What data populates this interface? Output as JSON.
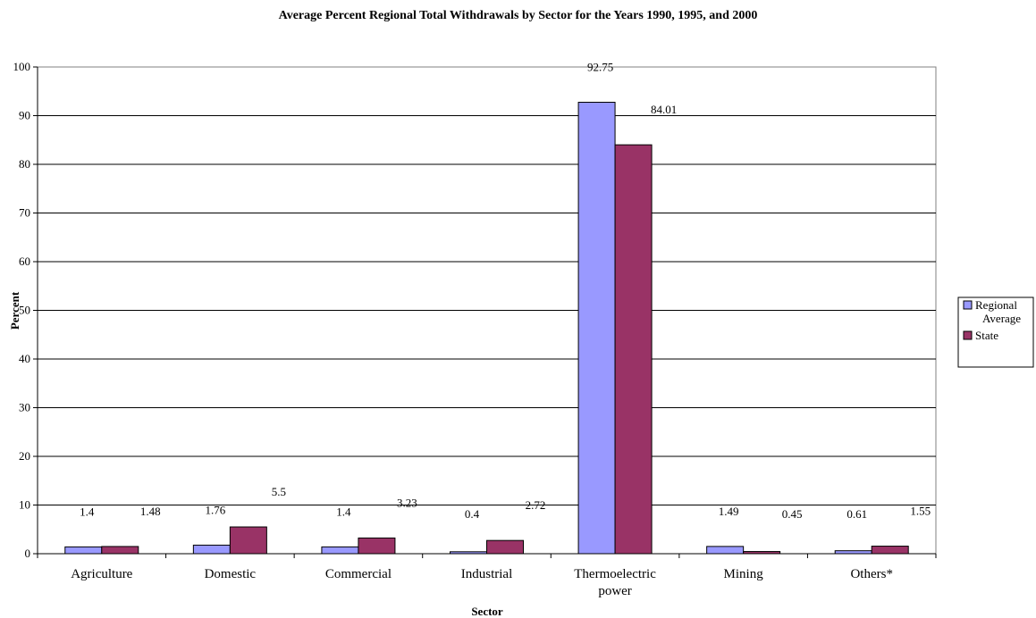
{
  "chart_data": {
    "type": "bar",
    "title": "Average Percent Regional Total Withdrawals by Sector for the Years 1990, 1995, and 2000",
    "xlabel": "Sector",
    "ylabel": "Percent",
    "ylim": [
      0,
      100
    ],
    "yticks": [
      "0",
      "10",
      "20",
      "30",
      "40",
      "50",
      "60",
      "70",
      "80",
      "90",
      "100"
    ],
    "categories": [
      [
        "Agriculture"
      ],
      [
        "Domestic"
      ],
      [
        "Commercial"
      ],
      [
        "Industrial"
      ],
      [
        "Thermoelectric",
        "power"
      ],
      [
        "Mining"
      ],
      [
        "Others*"
      ]
    ],
    "series": [
      {
        "name": "Regional Average",
        "legend_lines": [
          "Regional",
          "Average"
        ],
        "color": "#9999ff",
        "values": [
          1.4,
          1.76,
          1.4,
          0.4,
          92.75,
          1.49,
          0.61
        ],
        "labels": [
          "1.4",
          "1.76",
          "1.4",
          "0.4",
          "92.75",
          "1.49",
          "0.61"
        ]
      },
      {
        "name": "State",
        "legend_lines": [
          "State"
        ],
        "color": "#993366",
        "values": [
          1.48,
          5.5,
          3.23,
          2.72,
          84.01,
          0.45,
          1.55
        ],
        "labels": [
          "1.48",
          "5.5",
          "3.23",
          "2.72",
          "84.01",
          "0.45",
          "1.55"
        ]
      }
    ],
    "grid": true,
    "legend_position": "right"
  }
}
